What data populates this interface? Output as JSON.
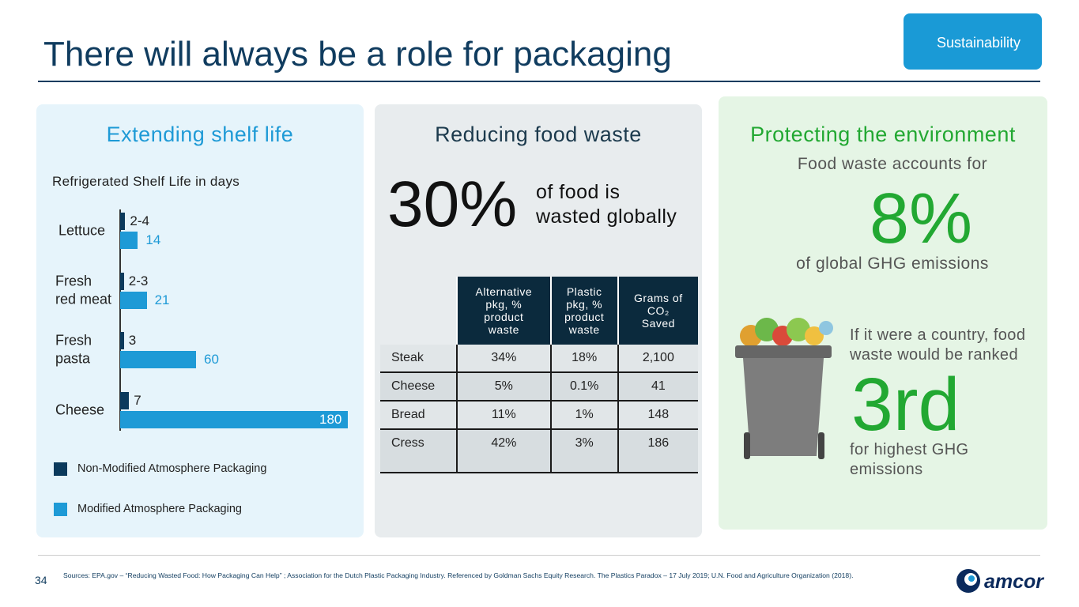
{
  "header": {
    "title": "There will always be a role for packaging",
    "tag": "Sustainability"
  },
  "shelf_life": {
    "heading": "Extending shelf life"
  },
  "chart_data": {
    "type": "bar",
    "orientation": "horizontal",
    "subtitle": "Refrigerated Shelf Life in days",
    "categories": [
      "Lettuce",
      "Fresh\nred meat",
      "Fresh\npasta",
      "Cheese"
    ],
    "series": [
      {
        "name": "Non-Modified Atmosphere Packaging",
        "color": "#0b3a5c",
        "values": [
          4,
          3,
          3,
          7
        ],
        "value_labels": [
          "2-4",
          "2-3",
          "3",
          "7"
        ]
      },
      {
        "name": "Modified Atmosphere Packaging",
        "color": "#1e9ad6",
        "values": [
          14,
          21,
          60,
          180
        ]
      }
    ]
  },
  "food_waste": {
    "heading": "Reducing food waste",
    "stat": "30%",
    "stat_text": "of food is\nwasted globally",
    "table": {
      "header": [
        "Alternative\npkg, %\nproduct\nwaste",
        "Plastic\npkg, %\nproduct\nwaste",
        "Grams of\nCO₂\nSaved"
      ],
      "rows": [
        [
          "Steak",
          "34%",
          "18%",
          "2,100"
        ],
        [
          "Cheese",
          "5%",
          "0.1%",
          "41"
        ],
        [
          "Bread",
          "11%",
          "1%",
          "148"
        ],
        [
          "Cress",
          "42%",
          "3%",
          "186"
        ]
      ]
    }
  },
  "environment": {
    "heading": "Protecting the environment",
    "intro": "Food waste accounts for",
    "stat": "8%",
    "stat_text": "of global GHG emissions",
    "rank_intro": "If it were a country, food\nwaste would be ranked",
    "rank": "3rd",
    "rank_text": "for highest GHG\nemissions"
  },
  "footer": {
    "page": "34",
    "sources": "Sources: EPA.gov – “Reducing Wasted Food: How Packaging Can Help” ; Association for the Dutch Plastic Packaging Industry.  Referenced by Goldman Sachs Equity Research. The Plastics Paradox – 17 July 2019; U.N. Food and Agriculture Organization (2018).",
    "logo": "amcor"
  }
}
